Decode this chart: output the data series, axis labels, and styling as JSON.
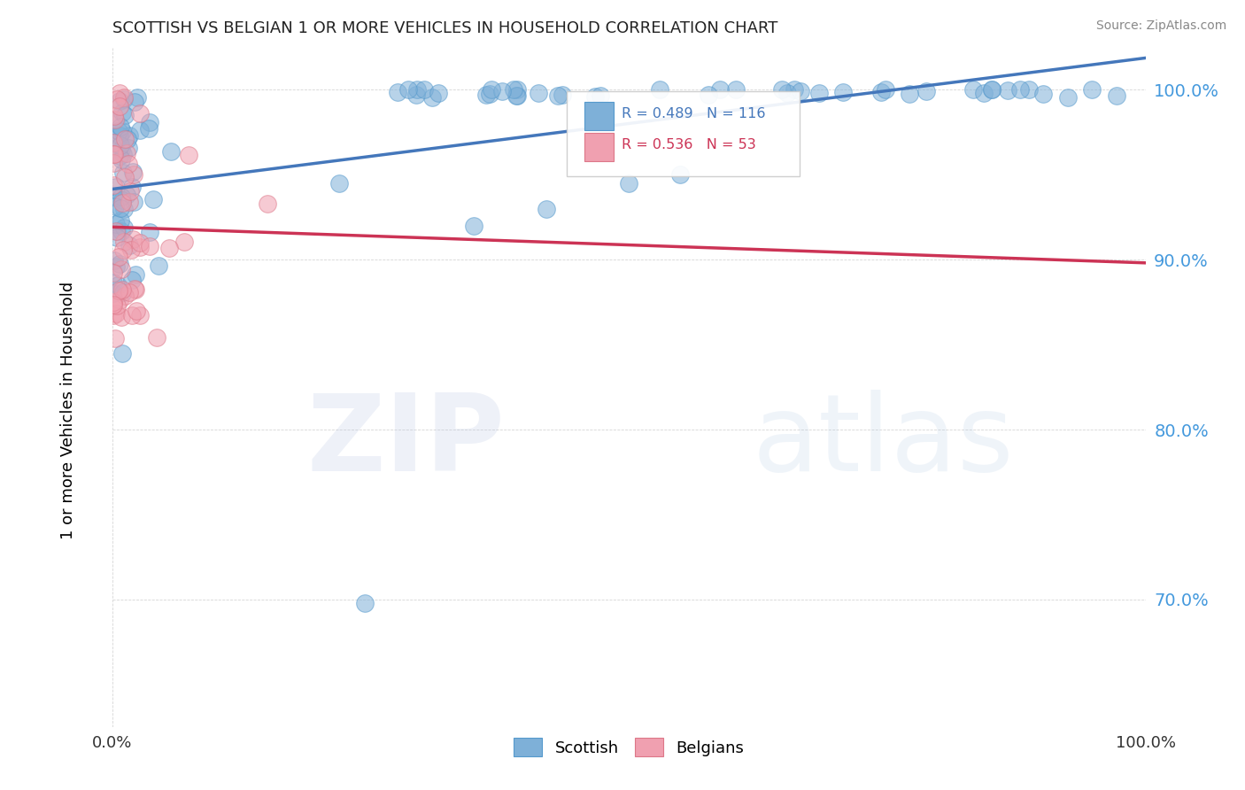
{
  "title": "SCOTTISH VS BELGIAN 1 OR MORE VEHICLES IN HOUSEHOLD CORRELATION CHART",
  "source": "Source: ZipAtlas.com",
  "ylabel": "1 or more Vehicles in Household",
  "xlim": [
    0.0,
    1.0
  ],
  "ylim": [
    0.625,
    1.025
  ],
  "yticks": [
    0.7,
    0.8,
    0.9,
    1.0
  ],
  "ytick_labels": [
    "70.0%",
    "80.0%",
    "90.0%",
    "100.0%"
  ],
  "xtick_labels": [
    "0.0%",
    "100.0%"
  ],
  "scottish_color": "#7EB0D8",
  "scottish_edge_color": "#5599CC",
  "belgian_color": "#F0A0B0",
  "belgian_edge_color": "#DD7788",
  "scottish_line_color": "#4477BB",
  "belgian_line_color": "#CC3355",
  "r_scottish": 0.489,
  "n_scottish": 116,
  "r_belgian": 0.536,
  "n_belgian": 53,
  "watermark_zip": "ZIP",
  "watermark_atlas": "atlas",
  "background_color": "#FFFFFF",
  "grid_color": "#CCCCCC",
  "ytick_color": "#4499DD",
  "xtick_color": "#333333"
}
